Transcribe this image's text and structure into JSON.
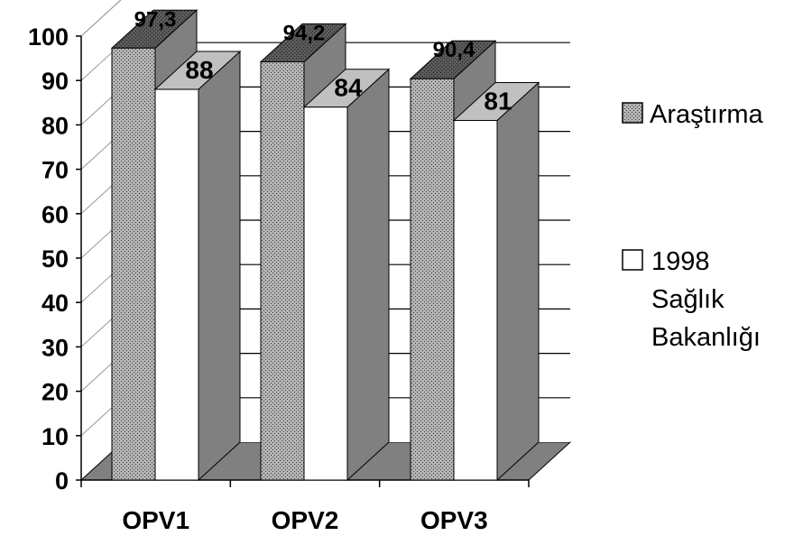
{
  "chart_data": {
    "type": "bar",
    "style": "3d-clustered-column",
    "categories": [
      "OPV1",
      "OPV2",
      "OPV3"
    ],
    "series": [
      {
        "name": "Araştırma",
        "values": [
          97.3,
          94.2,
          90.4
        ],
        "labels": [
          "97,3",
          "94,2",
          "90,4"
        ],
        "color": "#8c8c8c",
        "pattern": "stippled-gray"
      },
      {
        "name_lines": [
          "1998",
          "Sağlık",
          "Bakanlığı"
        ],
        "values": [
          88,
          84,
          81
        ],
        "labels": [
          "88",
          "84",
          "81"
        ],
        "color": "#ffffff"
      }
    ],
    "yticks": [
      "0",
      "10",
      "20",
      "30",
      "40",
      "50",
      "60",
      "70",
      "80",
      "90",
      "100"
    ],
    "ylim": [
      0,
      100
    ],
    "grid": true,
    "legend": "right",
    "colors": {
      "wall": "#ffffff",
      "floor": "#808080",
      "side_face": "#808080",
      "top_a": "#595959",
      "top_b": "#c0c0c0",
      "outline": "#000000"
    }
  }
}
